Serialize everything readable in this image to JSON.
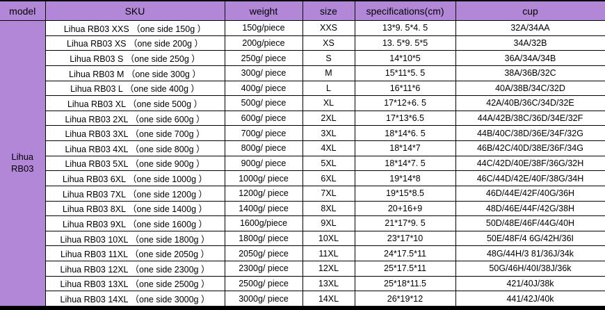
{
  "colors": {
    "header_bg": "#b287d8",
    "model_bg": "#b287d8",
    "border": "#000000",
    "row_bg": "#ffffff",
    "text": "#000000"
  },
  "table": {
    "columns": [
      {
        "key": "model",
        "label": "model"
      },
      {
        "key": "sku",
        "label": "SKU"
      },
      {
        "key": "weight",
        "label": "weight"
      },
      {
        "key": "size",
        "label": "size"
      },
      {
        "key": "spec",
        "label": "specifications(cm)"
      },
      {
        "key": "cup",
        "label": "cup"
      }
    ],
    "model": {
      "line1": "Lihua",
      "line2": "RB03"
    },
    "rows": [
      {
        "sku": "Lihua RB03  XXS （one side 150g ）",
        "weight": "150g/piece",
        "size": "XXS",
        "spec": "13*9. 5*4. 5",
        "cup": "32A/34AA"
      },
      {
        "sku": "Lihua RB03  XS （one side 200g ）",
        "weight": "200g/piece",
        "size": "XS",
        "spec": "13. 5*9. 5*5",
        "cup": "34A/32B"
      },
      {
        "sku": "Lihua RB03  S （one side 250g ）",
        "weight": "250g/ piece",
        "size": "S",
        "spec": "14*10*5",
        "cup": "36A/34A/34B"
      },
      {
        "sku": "Lihua RB03  M （one side 300g ）",
        "weight": "300g/ piece",
        "size": "M",
        "spec": "15*11*5. 5",
        "cup": "38A/36B/32C"
      },
      {
        "sku": "Lihua RB03  L （one side  400g ）",
        "weight": "400g/ piece",
        "size": "L",
        "spec": "16*11*6",
        "cup": "40A/38B/34C/32D"
      },
      {
        "sku": "Lihua RB03  XL （one side 500g ）",
        "weight": "500g/ piece",
        "size": "XL",
        "spec": "17*12+6. 5",
        "cup": "42A/40B/36C/34D/32E"
      },
      {
        "sku": "Lihua RB03  2XL （one side 600g ）",
        "weight": "600g/ piece",
        "size": "2XL",
        "spec": "17*13*6.5",
        "cup": "44A/42B/38C/36D/34E/32F"
      },
      {
        "sku": "Lihua RB03  3XL （one side 700g ）",
        "weight": "700g/ piece",
        "size": "3XL",
        "spec": "18*14*6. 5",
        "cup": "44B/40C/38D/36E/34F/32G"
      },
      {
        "sku": "Lihua RB03  4XL （one side 800g ）",
        "weight": "800g/ piece",
        "size": "4XL",
        "spec": "18*14*7",
        "cup": "46B/42C/40D/38E/36F/34G"
      },
      {
        "sku": "Lihua RB03  5XL （one side 900g ）",
        "weight": "900g/ piece",
        "size": "5XL",
        "spec": "18*14*7. 5",
        "cup": "44C/42D/40E/38F/36G/32H"
      },
      {
        "sku": "Lihua RB03  6XL （one side 1000g ）",
        "weight": "1000g/ piece",
        "size": "6XL",
        "spec": "19*14*8",
        "cup": "46C/44D/42E/40F/38G/34H"
      },
      {
        "sku": "Lihua RB03  7XL （one side  1200g ）",
        "weight": "1200g/ piece",
        "size": "7XL",
        "spec": "19*15*8.5",
        "cup": "46D/44E/42F/40G/36H"
      },
      {
        "sku": "Lihua RB03  8XL （one side  1400g ）",
        "weight": "1400g/ piece",
        "size": "8XL",
        "spec": "20+16+9",
        "cup": "48D/46E/44F/42G/38H"
      },
      {
        "sku": "Lihua RB03  9XL （one side 1600g ）",
        "weight": "1600g/piece",
        "size": "9XL",
        "spec": "21*17*9. 5",
        "cup": "50D/48E/46F/44G/40H"
      },
      {
        "sku": "Lihua RB03  10XL （one side 1800g ）",
        "weight": "1800g/ piece",
        "size": "10XL",
        "spec": "23*17*10",
        "cup": "50E/48F/4 6G/42H/36I"
      },
      {
        "sku": "Lihua RB03  11XL （one side 2050g ）",
        "weight": "2050g/ piece",
        "size": "11XL",
        "spec": "24*17.5*11",
        "cup": "48G/44H/3 81/36J/34k"
      },
      {
        "sku": "Lihua RB03  12XL （one side 2300g ）",
        "weight": "2300g/ piece",
        "size": "12XL",
        "spec": "25*17.5*11",
        "cup": "50G/46H/40I/38J/36k"
      },
      {
        "sku": "Lihua RB03  13XL （one side 2500g ）",
        "weight": "2500g/ piece",
        "size": "13XL",
        "spec": "25*18*11.5",
        "cup": "421/40J/38k"
      },
      {
        "sku": "Lihua RB03  14XL （one side 3000g ）",
        "weight": "3000g/ piece",
        "size": "14XL",
        "spec": "26*19*12",
        "cup": "441/42J/40k"
      }
    ]
  }
}
